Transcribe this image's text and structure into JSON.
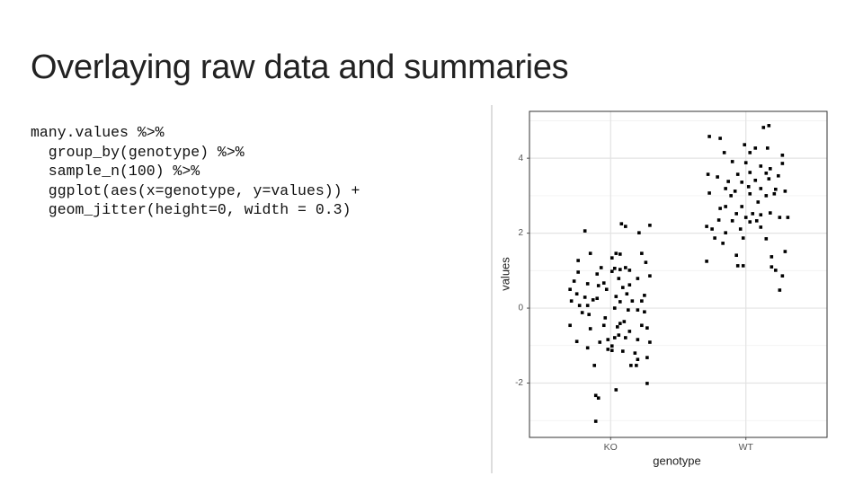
{
  "slide": {
    "title": "Overlaying raw data and summaries",
    "code": [
      "many.values %>%",
      "  group_by(genotype) %>%",
      "  sample_n(100) %>%",
      "  ggplot(aes(x=genotype, y=values)) +",
      "  geom_jitter(height=0, width = 0.3)"
    ]
  },
  "chart_data": {
    "type": "scatter",
    "x_label": "genotype",
    "y_label": "values",
    "xlim": [
      0.4,
      2.6
    ],
    "xticks": [
      {
        "value": 1,
        "label": "KO"
      },
      {
        "value": 2,
        "label": "WT"
      }
    ],
    "ylim": [
      -3.45,
      5.25
    ],
    "yticks": [
      -2,
      0,
      2,
      4
    ],
    "yminorticks": [
      -3,
      -1,
      1,
      3,
      5
    ],
    "grid": true,
    "series": [
      {
        "name": "KO",
        "color": "#000000",
        "x": [
          0.81,
          1.08,
          1.11,
          1.21,
          1.29,
          0.85,
          1.04,
          1.01,
          1.07,
          1.23,
          0.76,
          1.26,
          0.93,
          1.03,
          1.07,
          1.11,
          1.14,
          1.01,
          0.76,
          1.29,
          0.73,
          1.06,
          1.2,
          0.95,
          0.83,
          1.09,
          0.7,
          0.91,
          0.75,
          1.12,
          1.25,
          0.81,
          0.87,
          0.9,
          0.71,
          1.04,
          1.07,
          1.16,
          1.23,
          0.77,
          0.83,
          1.03,
          1.2,
          1.13,
          1.25,
          0.79,
          0.84,
          0.96,
          0.7,
          1.07,
          1.1,
          1.05,
          0.95,
          0.85,
          1.23,
          1.27,
          1.14,
          1.06,
          1.03,
          0.98,
          1.11,
          0.75,
          0.92,
          1.2,
          1.29,
          1.01,
          0.83,
          0.98,
          1.01,
          1.09,
          1.18,
          1.27,
          1.2,
          1.15,
          1.19,
          0.88,
          1.27,
          1.04,
          0.89,
          0.91,
          0.89,
          0.9,
          1.14,
          0.97
        ],
        "values": [
          2.06,
          2.25,
          2.18,
          2.01,
          2.21,
          1.46,
          1.46,
          1.34,
          1.44,
          1.46,
          1.27,
          1.22,
          1.08,
          1.06,
          1.03,
          1.08,
          1.01,
          0.98,
          0.96,
          0.86,
          0.72,
          0.79,
          0.79,
          0.67,
          0.65,
          0.55,
          0.5,
          0.6,
          0.38,
          0.38,
          0.34,
          0.29,
          0.22,
          0.26,
          0.19,
          0.31,
          0.17,
          0.19,
          0.19,
          0.07,
          0.07,
          0,
          -0.05,
          -0.05,
          -0.1,
          -0.12,
          -0.17,
          -0.26,
          -0.46,
          -0.41,
          -0.36,
          -0.5,
          -0.46,
          -0.55,
          -0.46,
          -0.53,
          -0.62,
          -0.72,
          -0.79,
          -0.84,
          -0.79,
          -0.89,
          -0.91,
          -0.84,
          -0.91,
          -1.01,
          -1.06,
          -1.1,
          -1.13,
          -1.15,
          -1.2,
          -1.32,
          -1.37,
          -1.53,
          -1.53,
          -1.53,
          -2.01,
          -2.18,
          -2.33,
          -2.4,
          -3.02,
          0.91,
          0.62,
          0.5
        ]
      },
      {
        "name": "WT",
        "color": "#000000",
        "x": [
          2.13,
          2.17,
          1.73,
          1.81,
          1.99,
          2.07,
          2.16,
          1.84,
          2.03,
          2.27,
          1.9,
          2,
          2.11,
          2.18,
          2.27,
          1.72,
          1.94,
          2.03,
          2.15,
          2.24,
          1.87,
          1.97,
          2.07,
          2.17,
          1.85,
          2.02,
          2.11,
          2.22,
          2.29,
          1.73,
          1.92,
          2.15,
          2.03,
          1.85,
          1.97,
          1.81,
          2.05,
          2.11,
          2.18,
          2,
          2.25,
          2.31,
          1.8,
          1.9,
          2.03,
          2.08,
          1.71,
          1.75,
          1.85,
          1.96,
          2.11,
          1.77,
          1.98,
          2.15,
          1.83,
          2.29,
          1.93,
          2.19,
          1.71,
          1.94,
          1.98,
          2.19,
          2.27,
          2.22,
          2.25,
          1.89,
          2.21,
          1.79,
          2.09,
          1.93
        ],
        "values": [
          4.82,
          4.87,
          4.58,
          4.53,
          4.36,
          4.27,
          4.27,
          4.15,
          4.15,
          4.08,
          3.91,
          3.88,
          3.79,
          3.72,
          3.86,
          3.57,
          3.57,
          3.62,
          3.6,
          3.53,
          3.38,
          3.36,
          3.41,
          3.45,
          3.19,
          3.24,
          3.19,
          3.17,
          3.12,
          3.07,
          3.12,
          3,
          3.05,
          2.71,
          2.71,
          2.66,
          2.52,
          2.49,
          2.54,
          2.42,
          2.42,
          2.42,
          2.35,
          2.33,
          2.3,
          2.33,
          2.18,
          2.11,
          2.01,
          2.11,
          2.16,
          1.87,
          1.87,
          1.85,
          1.73,
          1.51,
          1.41,
          1.37,
          1.25,
          1.13,
          1.13,
          1.1,
          0.86,
          1.01,
          0.48,
          3,
          3.05,
          3.5,
          2.83,
          2.52
        ]
      }
    ]
  }
}
